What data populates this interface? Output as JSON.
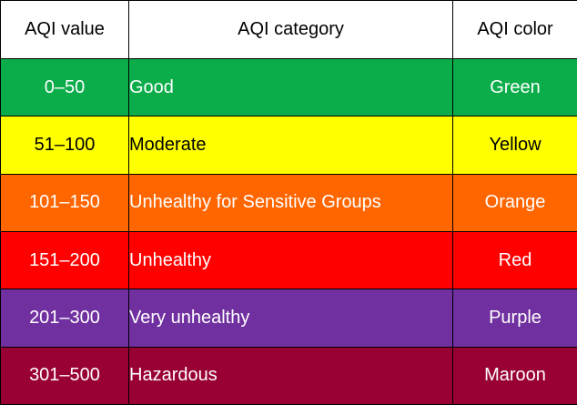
{
  "table": {
    "headers": {
      "value": "AQI value",
      "category": "AQI category",
      "color": "AQI color"
    },
    "rows": [
      {
        "value": "0–50",
        "category": "Good",
        "color": "Green",
        "bg": "#0aad4a",
        "fg": "#ffffff"
      },
      {
        "value": "51–100",
        "category": "Moderate",
        "color": "Yellow",
        "bg": "#ffff00",
        "fg": "#000000"
      },
      {
        "value": "101–150",
        "category": "Unhealthy for Sensitive Groups",
        "color": "Orange",
        "bg": "#ff6600",
        "fg": "#ffffff"
      },
      {
        "value": "151–200",
        "category": "Unhealthy",
        "color": "Red",
        "bg": "#ff0000",
        "fg": "#ffffff"
      },
      {
        "value": "201–300",
        "category": "Very unhealthy",
        "color": "Purple",
        "bg": "#7030a0",
        "fg": "#ffffff"
      },
      {
        "value": "301–500",
        "category": "Hazardous",
        "color": "Maroon",
        "bg": "#990033",
        "fg": "#ffffff"
      }
    ]
  }
}
